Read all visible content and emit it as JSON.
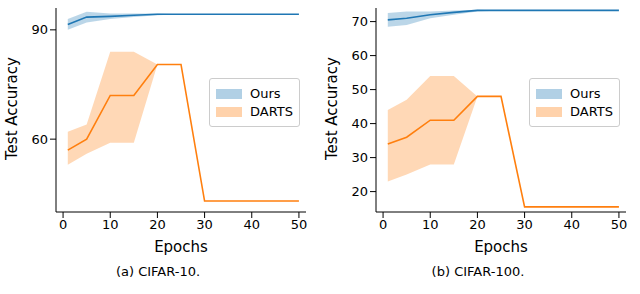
{
  "chart_data": [
    {
      "type": "line",
      "subtitle": "(a) CIFAR-10.",
      "x_label": "Epochs",
      "y_label": "Test Accuracy",
      "x": [
        1,
        5,
        10,
        15,
        20,
        25,
        30,
        50
      ],
      "xlim": [
        -1.5,
        51.5
      ],
      "xticks": [
        0,
        10,
        20,
        30,
        40,
        50
      ],
      "ylim": [
        40,
        96
      ],
      "yticks": [
        60,
        90
      ],
      "legend": "right",
      "series": [
        {
          "name": "Ours",
          "color": "#1f77b4",
          "values": [
            91.5,
            93.5,
            93.7,
            94,
            94.3,
            94.3,
            94.3,
            94.3
          ],
          "lower": [
            90,
            92,
            93,
            93.5,
            94,
            94.3,
            94.3,
            94.3
          ],
          "upper": [
            93,
            95,
            94.5,
            94.5,
            94.5,
            94.3,
            94.3,
            94.3
          ]
        },
        {
          "name": "DARTS",
          "color": "#ff7f0e",
          "values": [
            57,
            60,
            72,
            72,
            80.5,
            80.5,
            43,
            43
          ],
          "lower": [
            53,
            56,
            59,
            59,
            80.5,
            80.5,
            43,
            43
          ],
          "upper": [
            62,
            64,
            84,
            84,
            80.5,
            80.5,
            43,
            43
          ]
        }
      ]
    },
    {
      "type": "line",
      "subtitle": "(b) CIFAR-100.",
      "x_label": "Epochs",
      "y_label": "Test Accuracy",
      "x": [
        1,
        5,
        10,
        15,
        20,
        25,
        30,
        50
      ],
      "xlim": [
        -1.5,
        51.5
      ],
      "xticks": [
        0,
        10,
        20,
        30,
        40,
        50
      ],
      "ylim": [
        14,
        74
      ],
      "yticks": [
        20,
        30,
        40,
        50,
        60,
        70
      ],
      "legend": "right",
      "series": [
        {
          "name": "Ours",
          "color": "#1f77b4",
          "values": [
            70.5,
            71,
            72,
            72.7,
            73.3,
            73.3,
            73.3,
            73.3
          ],
          "lower": [
            68.5,
            69,
            71,
            72,
            73,
            73.3,
            73.3,
            73.3
          ],
          "upper": [
            72.5,
            73,
            73,
            73.3,
            73.5,
            73.3,
            73.3,
            73.3
          ]
        },
        {
          "name": "DARTS",
          "color": "#ff7f0e",
          "values": [
            34,
            36,
            41,
            41,
            48,
            48,
            15.5,
            15.5
          ],
          "lower": [
            23,
            25,
            28,
            28,
            48,
            48,
            15.5,
            15.5
          ],
          "upper": [
            44,
            47,
            54,
            54,
            48,
            48,
            15.5,
            15.5
          ]
        }
      ]
    }
  ]
}
